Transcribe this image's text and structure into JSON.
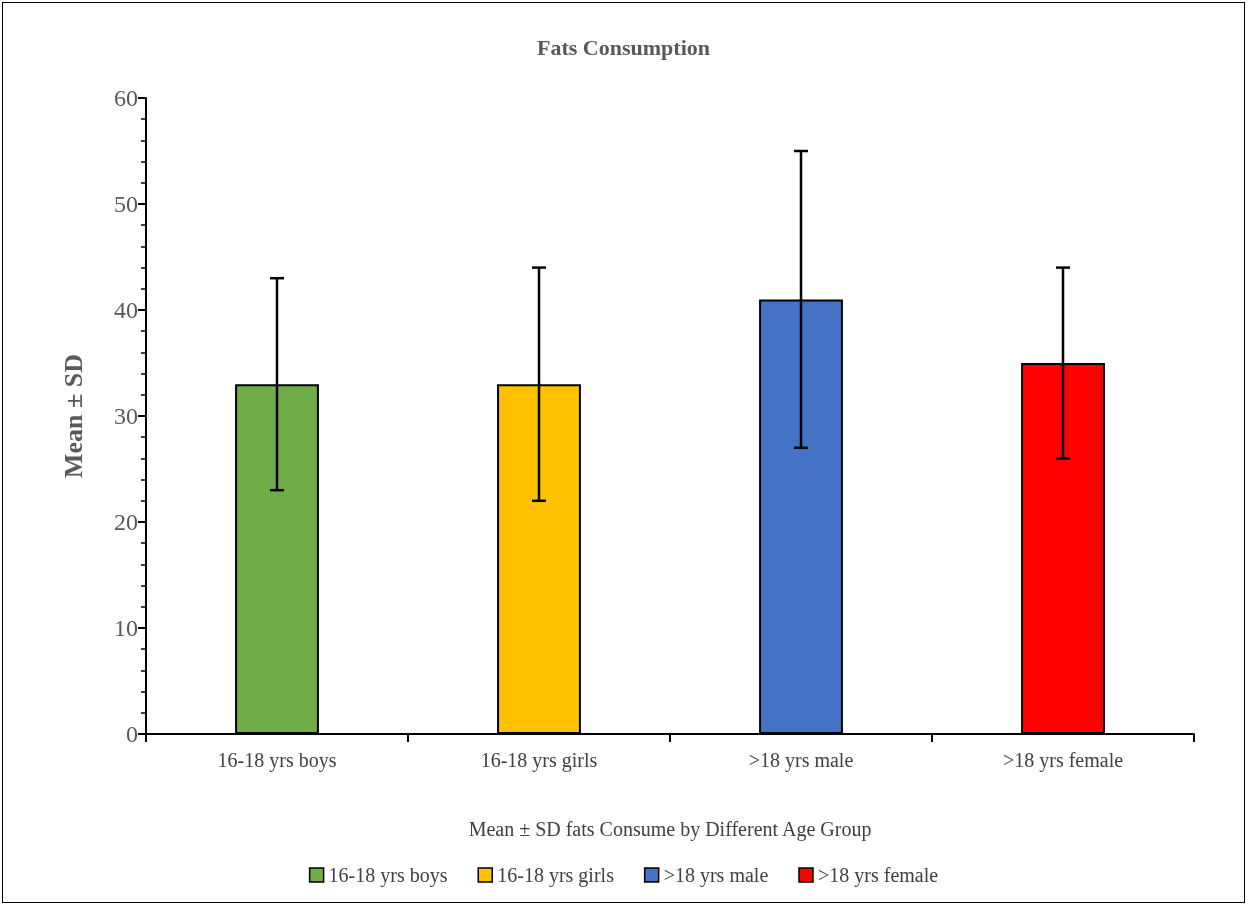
{
  "chart_data": {
    "type": "bar",
    "title": "Fats Consumption",
    "xlabel": "Mean ± SD fats Consume by Different Age Group",
    "ylabel": "Mean ± SD",
    "categories": [
      "16-18 yrs boys",
      "16-18 yrs girls",
      ">18 yrs male",
      ">18 yrs female"
    ],
    "series": [
      {
        "name": "16-18 yrs boys",
        "color": "#70ad47",
        "values": [
          33,
          null,
          null,
          null
        ],
        "errors": [
          10,
          null,
          null,
          null
        ]
      },
      {
        "name": "16-18 yrs girls",
        "color": "#ffc000",
        "values": [
          null,
          33,
          null,
          null
        ],
        "errors": [
          null,
          11,
          null,
          null
        ]
      },
      {
        "name": ">18 yrs male",
        "color": "#4472c4",
        "values": [
          null,
          null,
          41,
          null
        ],
        "errors": [
          null,
          null,
          14,
          null
        ]
      },
      {
        "name": ">18 yrs female",
        "color": "#ff0000",
        "values": [
          null,
          null,
          null,
          35
        ],
        "errors": [
          null,
          null,
          null,
          9
        ]
      }
    ],
    "stacked": true,
    "ylim": [
      0,
      60
    ],
    "yticks": [
      0,
      10,
      20,
      30,
      40,
      50,
      60
    ],
    "grid": false,
    "legend": "bottom"
  }
}
